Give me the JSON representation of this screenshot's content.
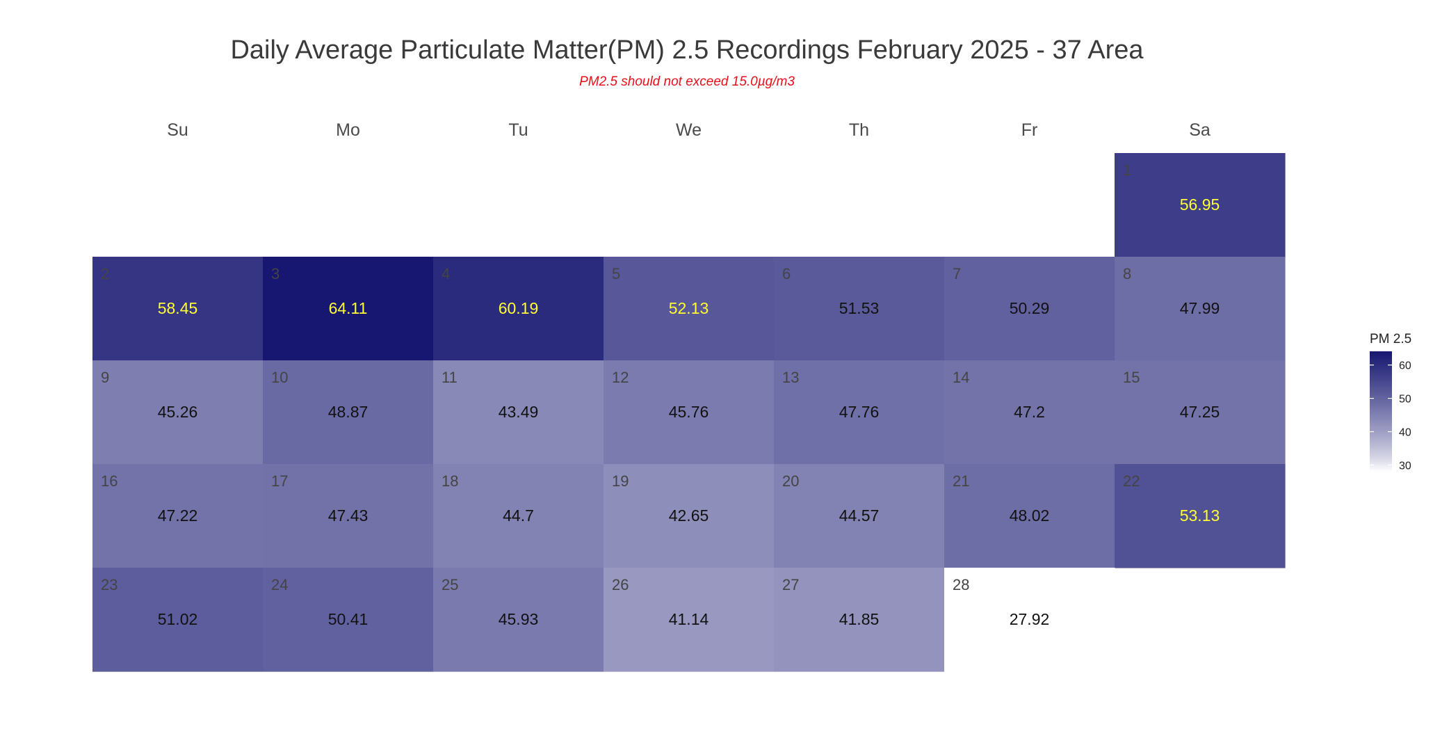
{
  "chart_data": {
    "type": "heatmap",
    "title": "Daily Average Particulate Matter(PM) 2.5 Recordings February 2025 -  37 Area",
    "subtitle": "PM2.5 should not exceed 15.0µg/m3",
    "weekdays": [
      "Su",
      "Mo",
      "Tu",
      "We",
      "Th",
      "Fr",
      "Sa"
    ],
    "first_weekday_index": 6,
    "days": [
      1,
      2,
      3,
      4,
      5,
      6,
      7,
      8,
      9,
      10,
      11,
      12,
      13,
      14,
      15,
      16,
      17,
      18,
      19,
      20,
      21,
      22,
      23,
      24,
      25,
      26,
      27,
      28
    ],
    "values": [
      56.95,
      58.45,
      64.11,
      60.19,
      52.13,
      51.53,
      50.29,
      47.99,
      45.26,
      48.87,
      43.49,
      45.76,
      47.76,
      47.2,
      47.25,
      47.22,
      47.43,
      44.7,
      42.65,
      44.57,
      48.02,
      53.13,
      51.02,
      50.41,
      45.93,
      41.14,
      41.85,
      27.92
    ],
    "value_labels": [
      "56.95",
      "58.45",
      "64.11",
      "60.19",
      "52.13",
      "51.53",
      "50.29",
      "47.99",
      "45.26",
      "48.87",
      "43.49",
      "45.76",
      "47.76",
      "47.2",
      "47.25",
      "47.22",
      "47.43",
      "44.7",
      "42.65",
      "44.57",
      "48.02",
      "53.13",
      "51.02",
      "50.41",
      "45.93",
      "41.14",
      "41.85",
      "27.92"
    ],
    "highlight_threshold": 52,
    "highlight_label_color": "#ffff33",
    "normal_label_color": "#111111",
    "color_scale": {
      "low": "#ffffff",
      "high": "#171772",
      "min": 28,
      "max": 64.11
    },
    "legend": {
      "title": "PM 2.5",
      "ticks": [
        30,
        40,
        50,
        60
      ],
      "placement": "right"
    }
  }
}
